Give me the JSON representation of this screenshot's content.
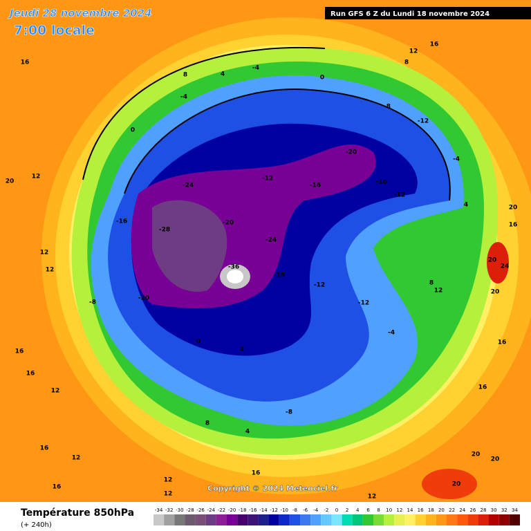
{
  "header": {
    "date": "Jeudi 28 novembre 2024",
    "time": "7:00 locale",
    "run": "Run GFS 6 Z du Lundi 18 novembre 2024"
  },
  "copyright": "Copyright © 2024 Meteociel.fr",
  "legend": {
    "title": "Température 850hPa",
    "lead": "(+ 240h)",
    "ticks": [
      -34,
      -32,
      -30,
      -28,
      -26,
      -24,
      -22,
      -20,
      -18,
      -16,
      -14,
      -12,
      -10,
      -8,
      -6,
      -4,
      -2,
      0,
      2,
      4,
      6,
      8,
      10,
      12,
      14,
      16,
      18,
      20,
      22,
      24,
      26,
      28,
      30,
      32,
      34
    ],
    "colors": [
      "#c8c8c8",
      "#a0a0a0",
      "#787878",
      "#6e5a6e",
      "#785078",
      "#6e3c82",
      "#8c1e96",
      "#780096",
      "#46006e",
      "#3c1478",
      "#1e1e8c",
      "#0000a0",
      "#0a28c8",
      "#1e50e6",
      "#3c78f0",
      "#50a0ff",
      "#64c8ff",
      "#78e6ff",
      "#00dcb4",
      "#00c878",
      "#32c832",
      "#78dc32",
      "#b4f03c",
      "#e6f050",
      "#fff064",
      "#ffd232",
      "#ffb41e",
      "#ff9614",
      "#ff7814",
      "#ff5a0a",
      "#f03c0a",
      "#dc1e0a",
      "#b40000",
      "#8c0000",
      "#500000"
    ]
  },
  "map": {
    "labels": [
      16,
      12,
      20,
      12,
      12,
      16,
      16,
      12,
      16,
      12,
      16,
      12,
      12,
      16,
      12,
      20,
      20,
      20,
      16,
      16,
      20,
      24,
      20,
      16,
      20,
      12,
      16,
      8,
      0,
      -4,
      4,
      8,
      -4,
      0,
      -8,
      -12,
      -20,
      -24,
      -28,
      -16,
      -20,
      -24,
      -16,
      -12,
      -12,
      -20,
      -36,
      -8,
      0,
      4,
      -4,
      8,
      4,
      -8,
      12,
      8,
      4,
      -4,
      -16,
      -12,
      -16,
      -12
    ]
  }
}
